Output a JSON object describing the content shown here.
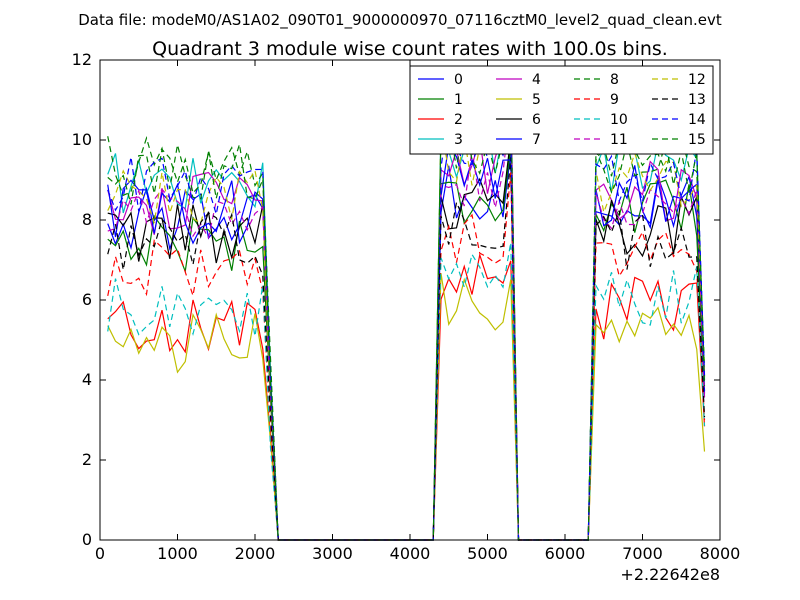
{
  "chart_data": {
    "type": "line",
    "suptitle": "Data file: modeM0/AS1A02_090T01_9000000970_07116cztM0_level2_quad_clean.evt",
    "title": "Quadrant 3 module wise count rates with 100.0s bins.",
    "xlabel": "",
    "ylabel": "",
    "x_offset_label": "+2.22642e8",
    "xlim": [
      0,
      8000
    ],
    "ylim": [
      0,
      12
    ],
    "x_ticks": [
      0,
      1000,
      2000,
      3000,
      4000,
      5000,
      6000,
      7000,
      8000
    ],
    "y_ticks": [
      0,
      2,
      4,
      6,
      8,
      10,
      12
    ],
    "x_tick_labels": [
      "0",
      "1000",
      "2000",
      "3000",
      "4000",
      "5000",
      "6000",
      "7000",
      "8000"
    ],
    "y_tick_labels": [
      "0",
      "2",
      "4",
      "6",
      "8",
      "10",
      "12"
    ],
    "grid": false,
    "legend_position": "top-right",
    "legend_columns": 4,
    "segments": [
      {
        "x_start": 100,
        "x_end": 2200
      },
      {
        "x_start": 4400,
        "x_end": 5300
      },
      {
        "x_start": 6400,
        "x_end": 7800
      }
    ],
    "gaps": [
      {
        "x_from": 2200,
        "x_to": 4400,
        "drop_x": 2300,
        "rise_x": 4300
      },
      {
        "x_from": 5300,
        "x_to": 6400,
        "drop_x": 5400,
        "rise_x": 6300
      }
    ],
    "series": [
      {
        "name": "0",
        "color": "#0000ff",
        "dash": "solid",
        "base_levels": [
          8.0,
          8.8,
          8.3
        ]
      },
      {
        "name": "1",
        "color": "#008000",
        "dash": "solid",
        "base_levels": [
          7.5,
          8.6,
          8.2
        ]
      },
      {
        "name": "2",
        "color": "#ff0000",
        "dash": "solid",
        "base_levels": [
          5.4,
          6.4,
          5.8
        ]
      },
      {
        "name": "3",
        "color": "#00bfbf",
        "dash": "solid",
        "base_levels": [
          8.9,
          9.8,
          9.3
        ]
      },
      {
        "name": "4",
        "color": "#bf00bf",
        "dash": "solid",
        "base_levels": [
          8.4,
          9.4,
          8.7
        ]
      },
      {
        "name": "5",
        "color": "#bfbf00",
        "dash": "solid",
        "base_levels": [
          4.9,
          5.9,
          5.3
        ]
      },
      {
        "name": "6",
        "color": "#000000",
        "dash": "solid",
        "base_levels": [
          7.6,
          8.5,
          7.9
        ]
      },
      {
        "name": "7",
        "color": "#0000ff",
        "dash": "solid",
        "base_levels": [
          8.2,
          9.2,
          8.6
        ]
      },
      {
        "name": "8",
        "color": "#008000",
        "dash": "dashed",
        "base_levels": [
          9.3,
          9.9,
          9.3
        ]
      },
      {
        "name": "9",
        "color": "#ff0000",
        "dash": "dashed",
        "base_levels": [
          6.8,
          7.6,
          7.2
        ]
      },
      {
        "name": "10",
        "color": "#00bfbf",
        "dash": "dashed",
        "base_levels": [
          5.8,
          6.5,
          6.1
        ]
      },
      {
        "name": "11",
        "color": "#bf00bf",
        "dash": "dashed",
        "base_levels": [
          8.2,
          9.0,
          8.4
        ]
      },
      {
        "name": "12",
        "color": "#bfbf00",
        "dash": "dashed",
        "base_levels": [
          8.6,
          9.6,
          8.9
        ]
      },
      {
        "name": "13",
        "color": "#000000",
        "dash": "dashed",
        "base_levels": [
          7.4,
          8.0,
          7.5
        ]
      },
      {
        "name": "14",
        "color": "#0000ff",
        "dash": "dashed",
        "base_levels": [
          8.9,
          9.9,
          9.0
        ]
      },
      {
        "name": "15",
        "color": "#008000",
        "dash": "dashed",
        "base_levels": [
          9.1,
          9.9,
          9.3
        ]
      }
    ]
  }
}
